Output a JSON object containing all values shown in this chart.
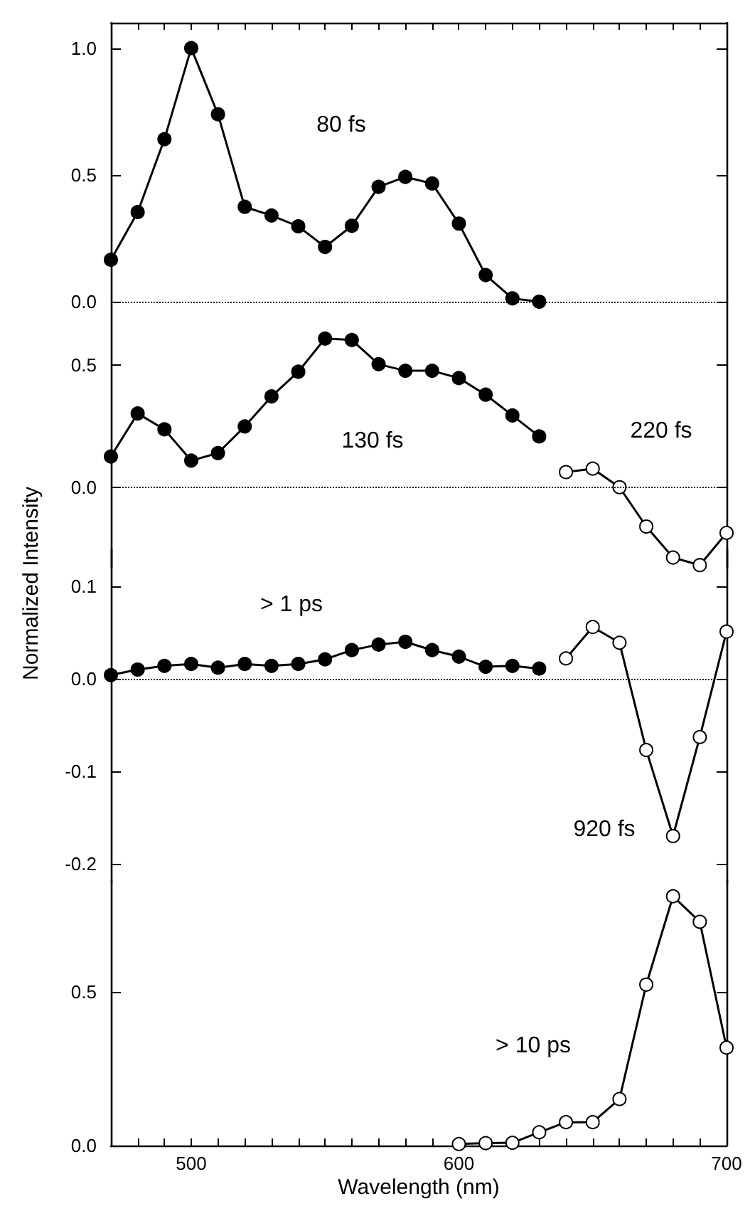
{
  "chart_data": [
    {
      "type": "line",
      "marker": "circle",
      "xlim": [
        470,
        700
      ],
      "xticks": [
        {
          "value": 480,
          "label": null
        },
        {
          "value": 490,
          "label": null
        },
        {
          "value": 500,
          "label": null
        },
        {
          "value": 510,
          "label": null
        },
        {
          "value": 520,
          "label": null
        },
        {
          "value": 530,
          "label": null
        },
        {
          "value": 540,
          "label": null
        },
        {
          "value": 550,
          "label": null
        },
        {
          "value": 560,
          "label": null
        },
        {
          "value": 570,
          "label": null
        },
        {
          "value": 580,
          "label": null
        },
        {
          "value": 590,
          "label": null
        },
        {
          "value": 600,
          "label": null
        },
        {
          "value": 610,
          "label": null
        },
        {
          "value": 620,
          "label": null
        },
        {
          "value": 630,
          "label": null
        },
        {
          "value": 640,
          "label": null
        },
        {
          "value": 650,
          "label": null
        },
        {
          "value": 660,
          "label": null
        },
        {
          "value": 670,
          "label": null
        },
        {
          "value": 680,
          "label": null
        },
        {
          "value": 690,
          "label": null
        }
      ],
      "ylim": [
        0,
        1.1
      ],
      "yticks": [
        {
          "value": 0,
          "label": "0.0"
        },
        {
          "value": 0.5,
          "label": "0.5"
        },
        {
          "value": 1,
          "label": "1.0"
        }
      ],
      "tick_labels": "y",
      "ref_lines": [
        {
          "axis": "y",
          "value": 0,
          "line_style": "dotted",
          "color": "#000000"
        }
      ],
      "series": [
        {
          "name": "80 fs",
          "color": "#000000",
          "x": [
            470,
            480,
            490,
            500,
            510,
            520,
            530,
            540,
            550,
            560,
            570,
            580,
            590,
            600,
            610,
            620,
            630
          ],
          "values": [
            0.165,
            0.353,
            0.641,
            1.0,
            0.739,
            0.374,
            0.34,
            0.297,
            0.216,
            0.299,
            0.453,
            0.492,
            0.466,
            0.308,
            0.105,
            0.013,
            0.0
          ]
        }
      ]
    },
    {
      "type": "line",
      "marker": "circle",
      "xlim": [
        470,
        700
      ],
      "ylim": [
        -0.33,
        0.76
      ],
      "yticks": [
        {
          "value": 0,
          "label": "0.0"
        },
        {
          "value": 0.5,
          "label": "0.5"
        }
      ],
      "tick_labels": "y",
      "ref_lines": [
        {
          "axis": "y",
          "value": 0,
          "line_style": "dotted",
          "color": "#000000"
        }
      ],
      "series": [
        {
          "name": "130 fs",
          "color": "#000000",
          "x": [
            470,
            480,
            490,
            500,
            510,
            520,
            530,
            540,
            550,
            560,
            570,
            580,
            590,
            600,
            610,
            620,
            630
          ],
          "values": [
            0.126,
            0.302,
            0.237,
            0.109,
            0.14,
            0.249,
            0.372,
            0.473,
            0.609,
            0.603,
            0.504,
            0.477,
            0.477,
            0.447,
            0.379,
            0.294,
            0.208
          ]
        },
        {
          "name": "220 fs",
          "color": "#000000",
          "colors": [
            "#ffffff",
            "#ffffff",
            "#ffffff",
            "#ffffff",
            "#ffffff",
            "#ffffff",
            "#ffffff"
          ],
          "x": [
            640,
            650,
            660,
            670,
            680,
            690,
            700
          ],
          "values": [
            0.062,
            0.076,
            0.0,
            -0.161,
            -0.288,
            -0.319,
            -0.187
          ]
        }
      ]
    },
    {
      "type": "line",
      "marker": "circle",
      "xlim": [
        470,
        700
      ],
      "ylim": [
        -0.22,
        0.14
      ],
      "yticks": [
        {
          "value": 0.1,
          "label": "0.1"
        },
        {
          "value": 0,
          "label": "0.0"
        },
        {
          "value": -0.1,
          "label": "-0.1"
        },
        {
          "value": -0.2,
          "label": "-0.2"
        }
      ],
      "tick_labels": "y",
      "ylabel": "Normalized Intensity",
      "ref_lines": [
        {
          "axis": "y",
          "value": 0,
          "line_style": "dotted",
          "color": "#000000"
        }
      ],
      "series": [
        {
          "name": "> 1 ps",
          "color": "#000000",
          "x": [
            470,
            480,
            490,
            500,
            510,
            520,
            530,
            540,
            550,
            560,
            570,
            580,
            590,
            600,
            610,
            620,
            630
          ],
          "values": [
            0.004,
            0.01,
            0.014,
            0.016,
            0.012,
            0.016,
            0.014,
            0.016,
            0.021,
            0.031,
            0.037,
            0.04,
            0.031,
            0.024,
            0.013,
            0.014,
            0.011
          ]
        },
        {
          "name": "920 fs",
          "color": "#000000",
          "colors": [
            "#ffffff",
            "#ffffff",
            "#ffffff",
            "#ffffff",
            "#ffffff",
            "#ffffff",
            "#ffffff"
          ],
          "x": [
            640,
            650,
            660,
            670,
            680,
            690,
            700
          ],
          "values": [
            0.022,
            0.056,
            0.039,
            -0.077,
            -0.17,
            -0.063,
            0.051
          ]
        }
      ]
    },
    {
      "type": "line",
      "marker": "circle",
      "xlim": [
        470,
        700
      ],
      "xticks": [
        {
          "value": 480,
          "label": null
        },
        {
          "value": 490,
          "label": null
        },
        {
          "value": 500,
          "label": "500"
        },
        {
          "value": 510,
          "label": null
        },
        {
          "value": 520,
          "label": null
        },
        {
          "value": 530,
          "label": null
        },
        {
          "value": 540,
          "label": null
        },
        {
          "value": 550,
          "label": null
        },
        {
          "value": 560,
          "label": null
        },
        {
          "value": 570,
          "label": null
        },
        {
          "value": 580,
          "label": null
        },
        {
          "value": 590,
          "label": null
        },
        {
          "value": 600,
          "label": "600"
        },
        {
          "value": 610,
          "label": null
        },
        {
          "value": 620,
          "label": null
        },
        {
          "value": 630,
          "label": null
        },
        {
          "value": 640,
          "label": null
        },
        {
          "value": 650,
          "label": null
        },
        {
          "value": 660,
          "label": null
        },
        {
          "value": 670,
          "label": null
        },
        {
          "value": 680,
          "label": null
        },
        {
          "value": 690,
          "label": null
        },
        {
          "value": 700,
          "label": "700"
        }
      ],
      "ylim": [
        0,
        0.86
      ],
      "yticks": [
        {
          "value": 0,
          "label": "0.0"
        },
        {
          "value": 0.5,
          "label": "0.5"
        }
      ],
      "xlabel": "Wavelength (nm)",
      "series": [
        {
          "name": "> 10 ps",
          "color": "#000000",
          "colors": [
            "#ffffff",
            "#ffffff",
            "#ffffff",
            "#ffffff",
            "#ffffff",
            "#ffffff",
            "#ffffff",
            "#ffffff",
            "#ffffff",
            "#ffffff",
            "#ffffff"
          ],
          "x": [
            600,
            610,
            620,
            630,
            640,
            650,
            660,
            670,
            680,
            690,
            700
          ],
          "values": [
            0.005,
            0.008,
            0.009,
            0.043,
            0.076,
            0.076,
            0.151,
            0.523,
            0.81,
            0.727,
            0.318
          ]
        }
      ]
    }
  ]
}
